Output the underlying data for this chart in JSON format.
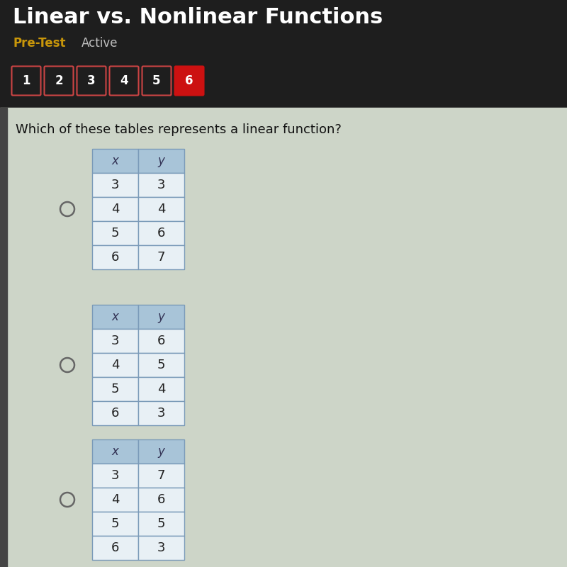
{
  "title": "Linear vs. Nonlinear Functions",
  "subtitle_left": "Pre-Test",
  "subtitle_right": "Active",
  "nav_buttons": [
    "1",
    "2",
    "3",
    "4",
    "5",
    "6"
  ],
  "active_button": 5,
  "question": "Which of these tables represents a linear function?",
  "tables": [
    {
      "headers": [
        "x",
        "y"
      ],
      "rows": [
        [
          "3",
          "3"
        ],
        [
          "4",
          "4"
        ],
        [
          "5",
          "6"
        ],
        [
          "6",
          "7"
        ]
      ]
    },
    {
      "headers": [
        "x",
        "y"
      ],
      "rows": [
        [
          "3",
          "6"
        ],
        [
          "4",
          "5"
        ],
        [
          "5",
          "4"
        ],
        [
          "6",
          "3"
        ]
      ]
    },
    {
      "headers": [
        "x",
        "y"
      ],
      "rows": [
        [
          "3",
          "7"
        ],
        [
          "4",
          "6"
        ],
        [
          "5",
          "5"
        ],
        [
          "6",
          "3"
        ]
      ]
    }
  ],
  "header_bg": "#a8c4d8",
  "row_bg": "#e8f0f5",
  "title_color": "#ffffff",
  "pretest_color": "#c8960a",
  "active_color": "#c0c0c0",
  "bg_top": "#1e1e1e",
  "bg_content": "#cdd5c8",
  "button_border_color": "#cc3333",
  "button_active_bg": "#cc1111",
  "button_inactive_bg": "#1e1e1e",
  "button_text_color": "#ffffff",
  "question_color": "#111111",
  "radio_color": "#666666",
  "table_border_color": "#7a9ab8",
  "cell_text_color": "#222222",
  "header_text_color": "#333355",
  "left_strip_color": "#555555",
  "nav_border_dotted": "#cc4444"
}
